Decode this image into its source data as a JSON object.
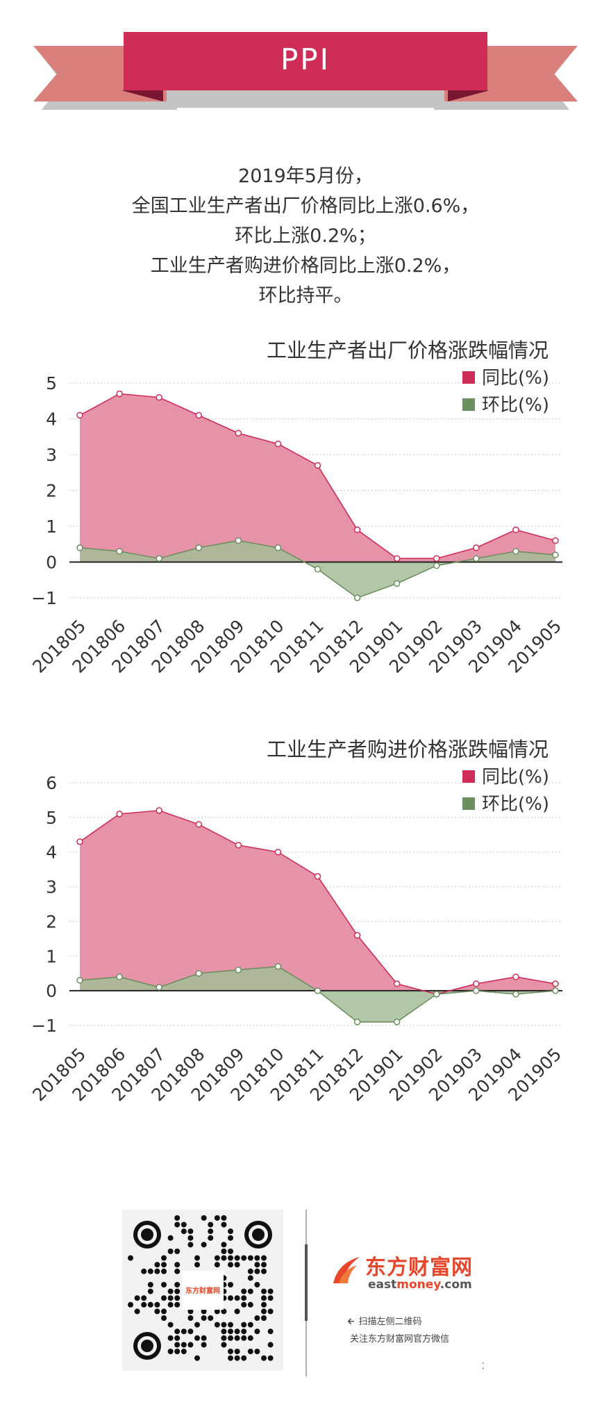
{
  "header": {
    "title": "PPI"
  },
  "intro": {
    "lines": [
      "2019年5月份，",
      "全国工业生产者出厂价格同比上涨0.6%，",
      "环比上涨0.2%；",
      "工业生产者购进价格同比上涨0.2%，",
      "环比持平。"
    ]
  },
  "colors": {
    "banner": "#cf2d57",
    "ribbon": "#d97f7c",
    "yoy_fill": "#e693a9",
    "yoy_line": "#cf2d57",
    "mom_fill": "#a4bd98",
    "mom_line": "#6b8f5e"
  },
  "chart_data": [
    {
      "type": "area",
      "title": "工业生产者出厂价格涨跌幅情况",
      "categories": [
        "201805",
        "201806",
        "201807",
        "201808",
        "201809",
        "201810",
        "201811",
        "201812",
        "201901",
        "201902",
        "201903",
        "201904",
        "201905"
      ],
      "series": [
        {
          "name": "同比(%)",
          "values": [
            4.1,
            4.7,
            4.6,
            4.1,
            3.6,
            3.3,
            2.7,
            0.9,
            0.1,
            0.1,
            0.4,
            0.9,
            0.6
          ]
        },
        {
          "name": "环比(%)",
          "values": [
            0.4,
            0.3,
            0.1,
            0.4,
            0.6,
            0.4,
            -0.2,
            -1.0,
            -0.6,
            -0.1,
            0.1,
            0.3,
            0.2
          ]
        }
      ],
      "ylim": [
        -1,
        5
      ],
      "yticks": [
        -1,
        0,
        1,
        2,
        3,
        4,
        5
      ],
      "ytick_labels": [
        "−1",
        "0",
        "1",
        "2",
        "3",
        "4",
        "5"
      ],
      "legend": "top-right",
      "grid": true
    },
    {
      "type": "area",
      "title": "工业生产者购进价格涨跌幅情况",
      "categories": [
        "201805",
        "201806",
        "201807",
        "201808",
        "201809",
        "201810",
        "201811",
        "201812",
        "201901",
        "201902",
        "201903",
        "201904",
        "201905"
      ],
      "series": [
        {
          "name": "同比(%)",
          "values": [
            4.3,
            5.1,
            5.2,
            4.8,
            4.2,
            4.0,
            3.3,
            1.6,
            0.2,
            -0.1,
            0.2,
            0.4,
            0.2
          ]
        },
        {
          "name": "环比(%)",
          "values": [
            0.3,
            0.4,
            0.1,
            0.5,
            0.6,
            0.7,
            0.0,
            -0.9,
            -0.9,
            -0.1,
            0.0,
            -0.1,
            0.0
          ]
        }
      ],
      "ylim": [
        -1,
        6
      ],
      "yticks": [
        -1,
        0,
        1,
        2,
        3,
        4,
        5,
        6
      ],
      "ytick_labels": [
        "−1",
        "0",
        "1",
        "2",
        "3",
        "4",
        "5",
        "6"
      ],
      "legend": "top-right",
      "grid": true
    }
  ],
  "footer": {
    "logo_cn": "东方财富网",
    "logo_en_1": "east",
    "logo_en_2": "money",
    "logo_en_3": ".com",
    "scan_text": "扫描左侧二维码",
    "follow_text": "关注东方财富网官方微信",
    "qr_label": "东方财富网",
    "corner_mark": "⁚"
  }
}
